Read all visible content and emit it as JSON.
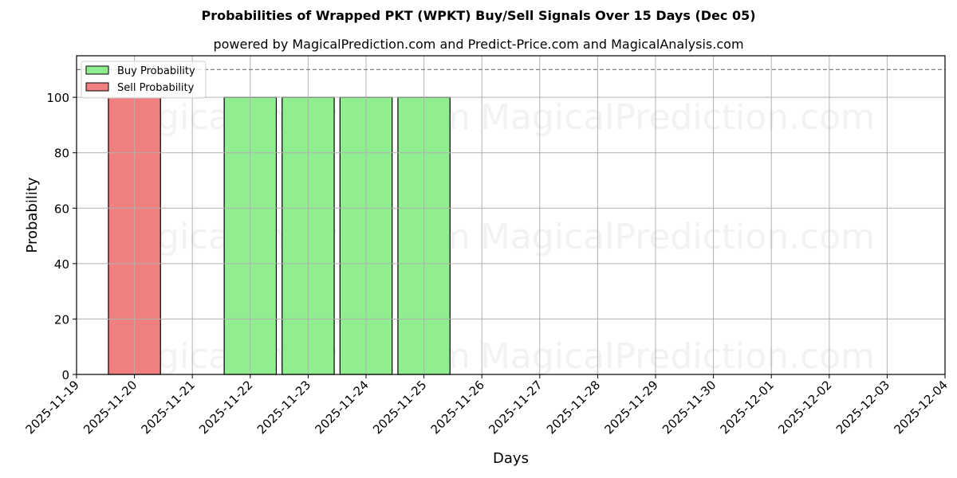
{
  "chart_data": {
    "type": "bar",
    "title": "Probabilities of Wrapped PKT (WPKT) Buy/Sell Signals Over 15 Days (Dec 05)",
    "subtitle": "powered by MagicalPrediction.com and Predict-Price.com and MagicalAnalysis.com",
    "xlabel": "Days",
    "ylabel": "Probability",
    "ylim": [
      0,
      115
    ],
    "yticks": [
      0,
      20,
      40,
      60,
      80,
      100
    ],
    "xticks": [
      "2025-11-19",
      "2025-11-20",
      "2025-11-21",
      "2025-11-22",
      "2025-11-23",
      "2025-11-24",
      "2025-11-25",
      "2025-11-26",
      "2025-11-27",
      "2025-11-28",
      "2025-11-29",
      "2025-11-30",
      "2025-12-01",
      "2025-12-02",
      "2025-12-03",
      "2025-12-04"
    ],
    "grid": true,
    "legend_position": "upper left",
    "reference_line": {
      "y": 110,
      "style": "dashed",
      "color": "#808080"
    },
    "series": [
      {
        "name": "Buy Probability",
        "color": "#90ee90",
        "points": [
          {
            "x": "2025-11-22",
            "y": 100
          },
          {
            "x": "2025-11-23",
            "y": 100
          },
          {
            "x": "2025-11-24",
            "y": 100
          },
          {
            "x": "2025-11-25",
            "y": 100
          }
        ]
      },
      {
        "name": "Sell Probability",
        "color": "#f08080",
        "points": [
          {
            "x": "2025-11-20",
            "y": 100
          }
        ]
      }
    ],
    "watermarks": [
      "MagicalAnalysis.com",
      "MagicalPrediction.com"
    ]
  }
}
